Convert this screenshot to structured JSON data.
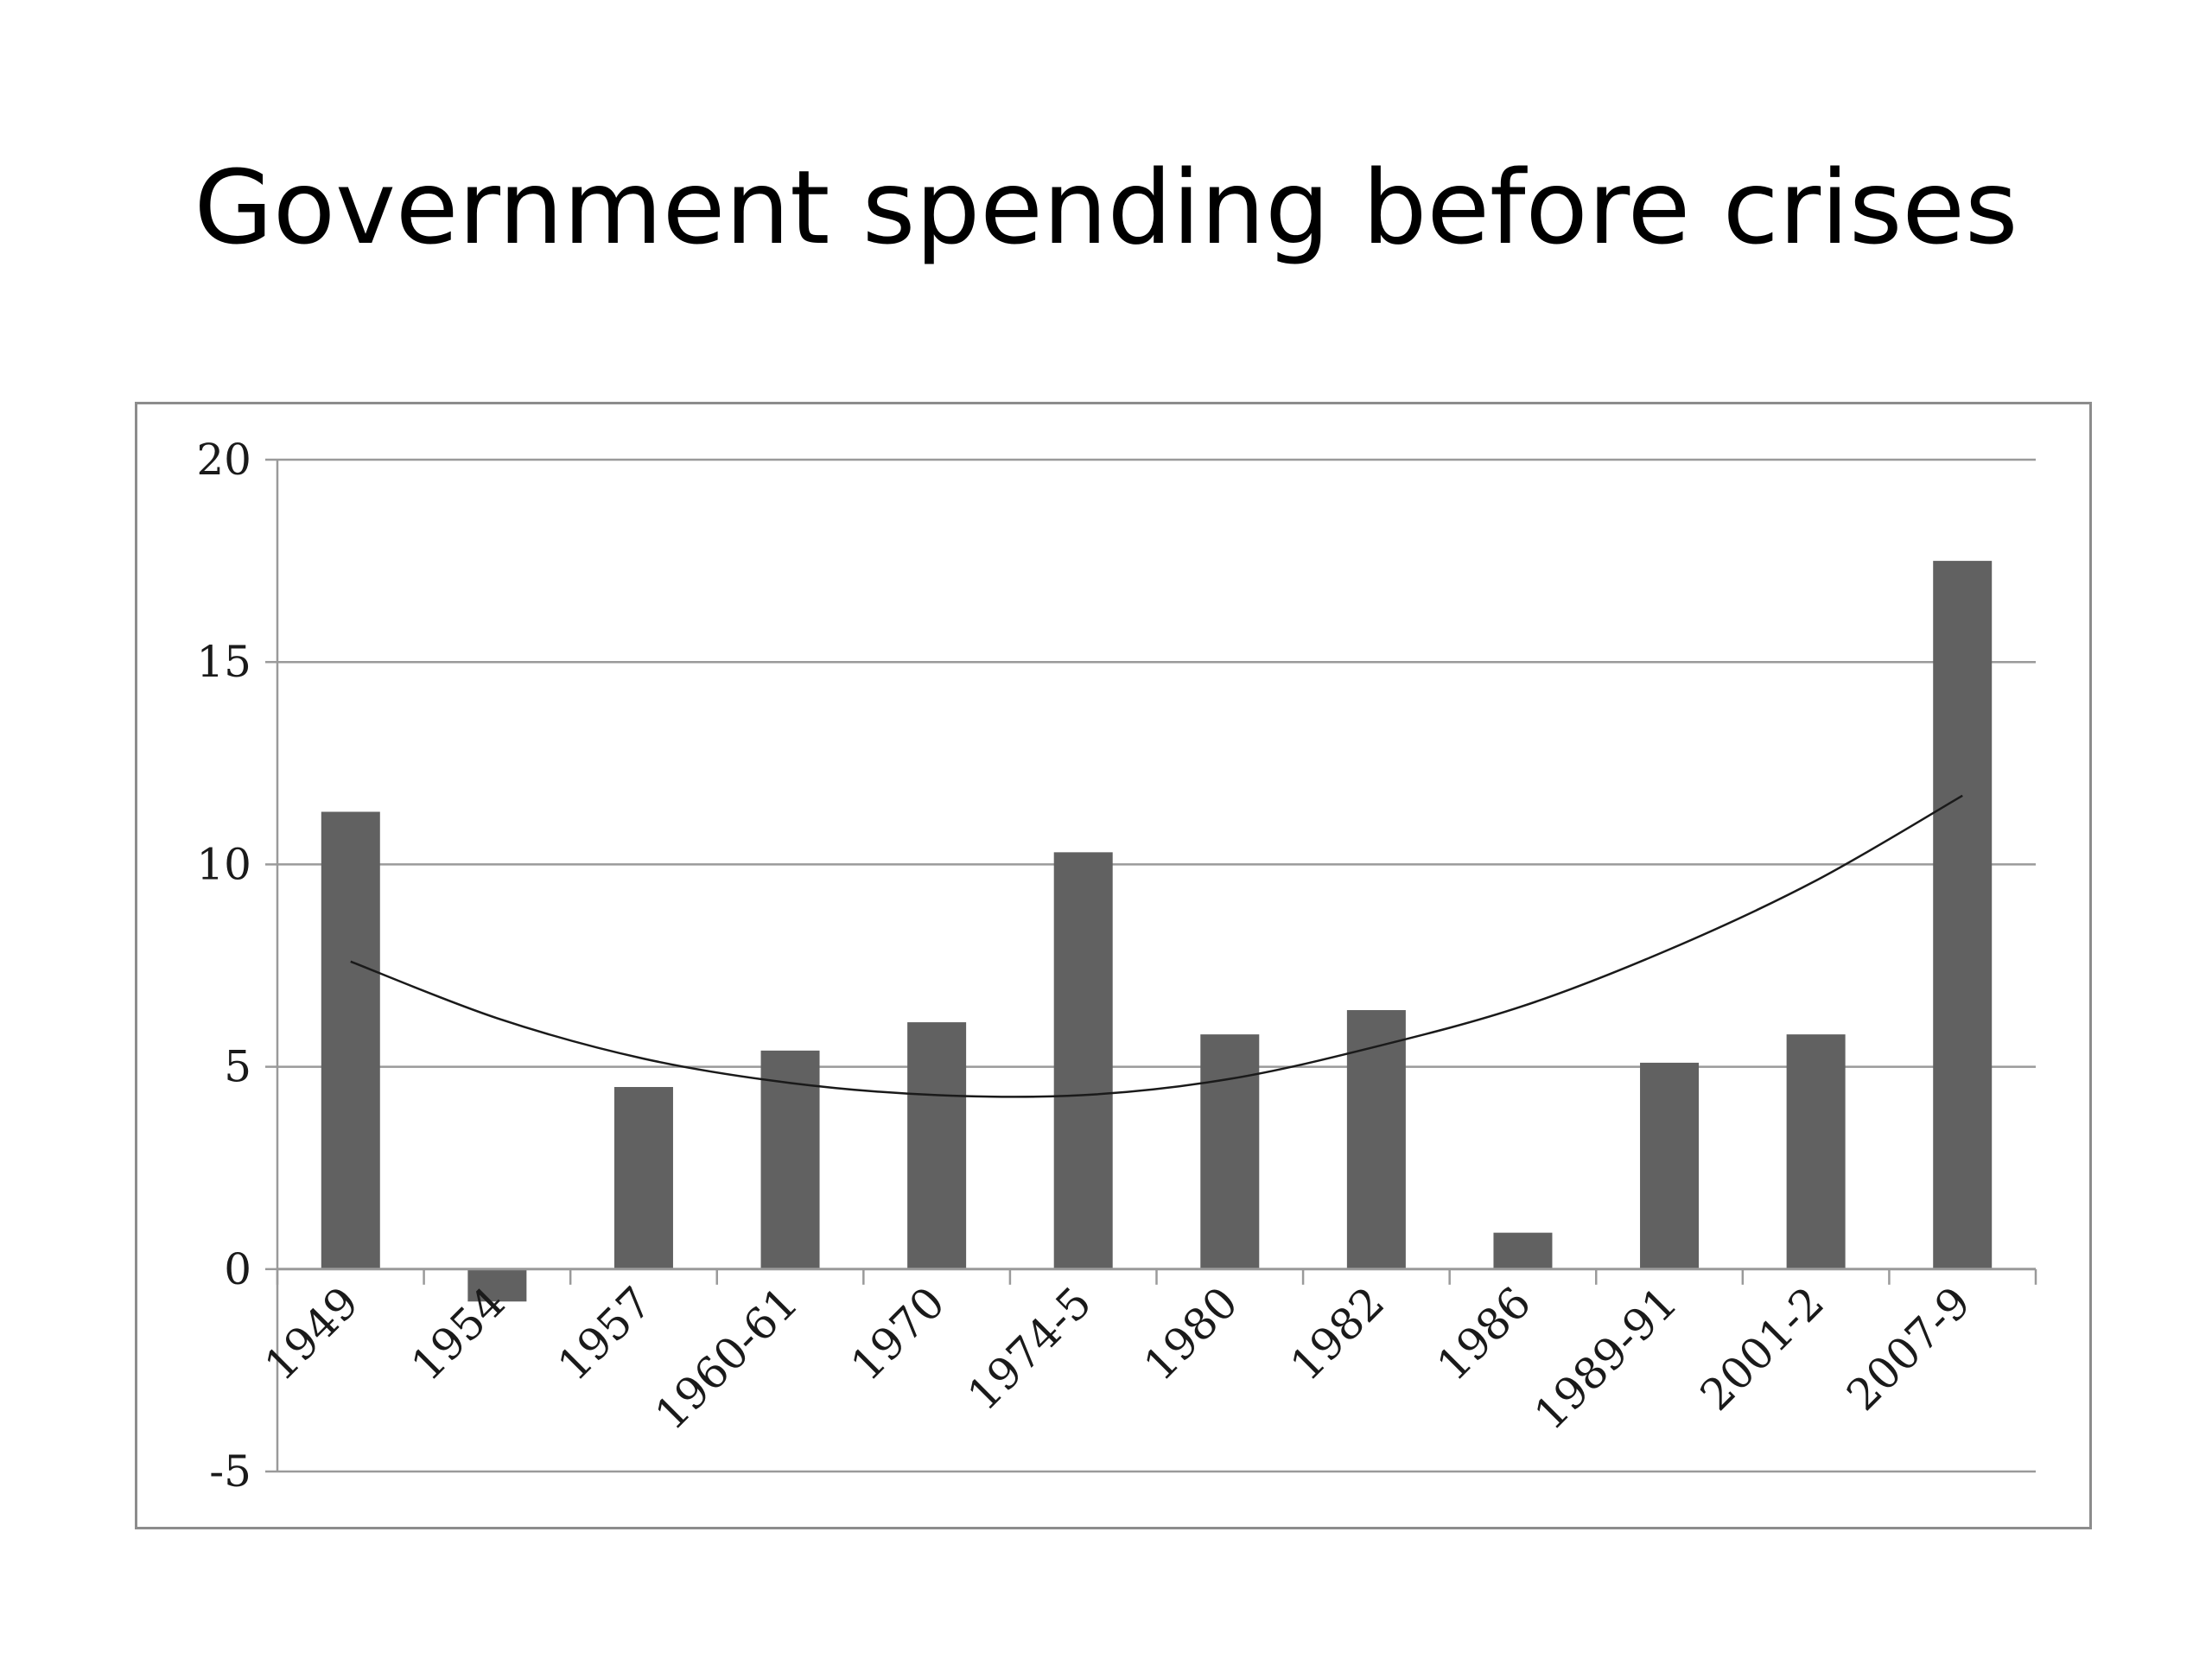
{
  "slide": {
    "title": "Government spending before crises"
  },
  "colors": {
    "bar": "#616161",
    "gridline": "#9a9a9a",
    "trendline": "#1a1a1a",
    "frame": "#8c8c8c"
  },
  "chart_data": {
    "type": "bar",
    "title": "Government spending before crises",
    "xlabel": "",
    "ylabel": "",
    "categories": [
      "1949",
      "1954",
      "1957",
      "1960-61",
      "1970",
      "1974-5",
      "1980",
      "1982",
      "1986",
      "1989-91",
      "2001-2",
      "2007-9"
    ],
    "values": [
      11.3,
      -0.8,
      4.5,
      5.4,
      6.1,
      10.3,
      5.8,
      6.4,
      0.9,
      5.1,
      5.8,
      17.5
    ],
    "trendline": {
      "type": "polynomial",
      "values": [
        7.6,
        6.2,
        5.2,
        4.6,
        4.3,
        4.3,
        4.7,
        5.5,
        6.5,
        7.9,
        9.6,
        11.7
      ]
    },
    "ylim": [
      -5,
      20
    ],
    "yticks": [
      "20",
      "15",
      "10",
      "5",
      "0",
      "-5"
    ],
    "ytick_values": [
      20,
      15,
      10,
      5,
      0,
      -5
    ],
    "grid": true,
    "legend": "none"
  }
}
